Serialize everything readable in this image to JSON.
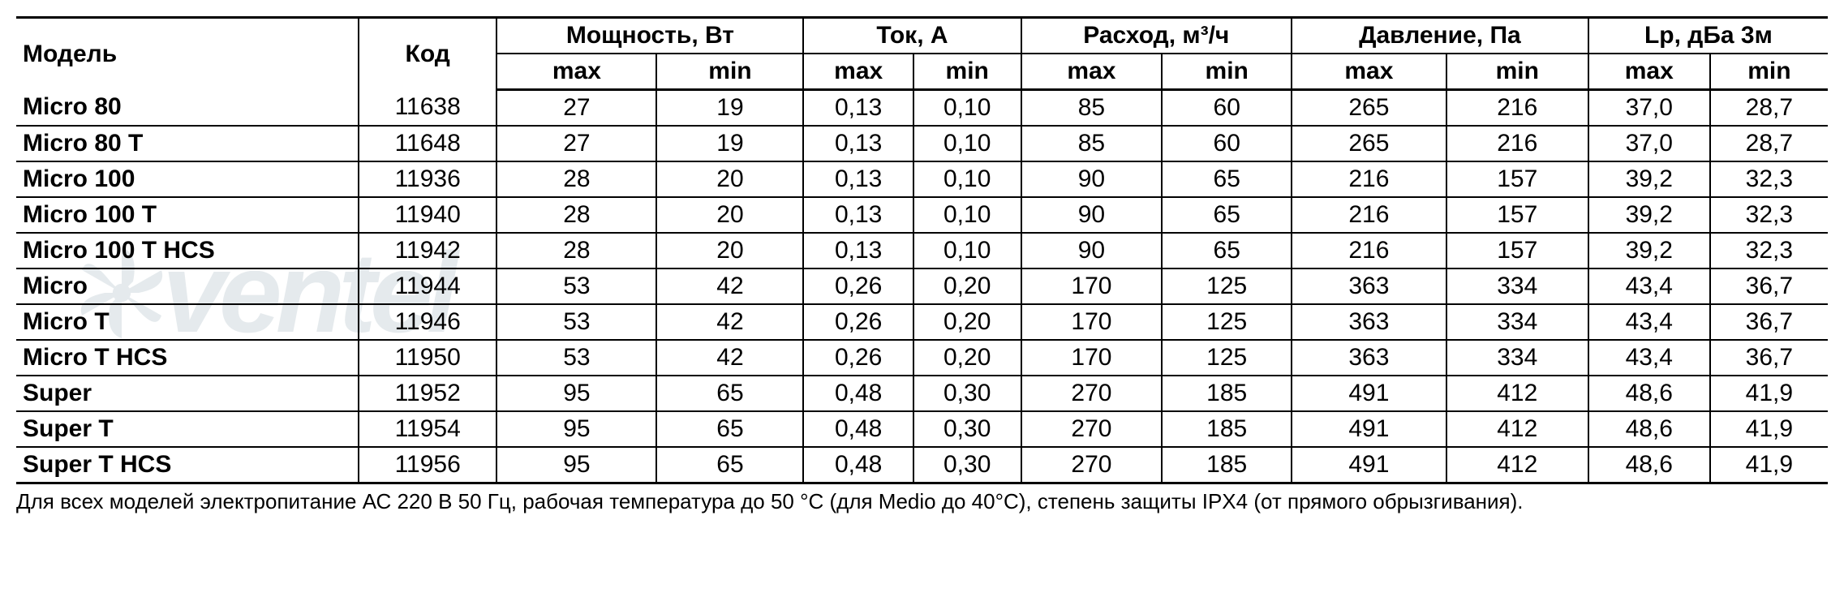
{
  "table": {
    "headers": {
      "model": "Модель",
      "code": "Код",
      "groups": [
        {
          "label": "Мощность, Вт",
          "sub": [
            "max",
            "min"
          ]
        },
        {
          "label": "Ток, А",
          "sub": [
            "max",
            "min"
          ]
        },
        {
          "label": "Расход, м³/ч",
          "sub": [
            "max",
            "min"
          ]
        },
        {
          "label": "Давление, Па",
          "sub": [
            "max",
            "min"
          ]
        },
        {
          "label": "Lp, дБа 3м",
          "sub": [
            "max",
            "min"
          ]
        }
      ]
    },
    "rows": [
      {
        "model": "Micro 80",
        "code": "11638",
        "vals": [
          "27",
          "19",
          "0,13",
          "0,10",
          "85",
          "60",
          "265",
          "216",
          "37,0",
          "28,7"
        ]
      },
      {
        "model": "Micro 80 T",
        "code": "11648",
        "vals": [
          "27",
          "19",
          "0,13",
          "0,10",
          "85",
          "60",
          "265",
          "216",
          "37,0",
          "28,7"
        ]
      },
      {
        "model": "Micro 100",
        "code": "11936",
        "vals": [
          "28",
          "20",
          "0,13",
          "0,10",
          "90",
          "65",
          "216",
          "157",
          "39,2",
          "32,3"
        ]
      },
      {
        "model": "Micro 100 T",
        "code": "11940",
        "vals": [
          "28",
          "20",
          "0,13",
          "0,10",
          "90",
          "65",
          "216",
          "157",
          "39,2",
          "32,3"
        ]
      },
      {
        "model": "Micro 100 T HCS",
        "code": "11942",
        "vals": [
          "28",
          "20",
          "0,13",
          "0,10",
          "90",
          "65",
          "216",
          "157",
          "39,2",
          "32,3"
        ]
      },
      {
        "model": "Micro",
        "code": "11944",
        "vals": [
          "53",
          "42",
          "0,26",
          "0,20",
          "170",
          "125",
          "363",
          "334",
          "43,4",
          "36,7"
        ]
      },
      {
        "model": "Micro T",
        "code": "11946",
        "vals": [
          "53",
          "42",
          "0,26",
          "0,20",
          "170",
          "125",
          "363",
          "334",
          "43,4",
          "36,7"
        ]
      },
      {
        "model": "Micro T HCS",
        "code": "11950",
        "vals": [
          "53",
          "42",
          "0,26",
          "0,20",
          "170",
          "125",
          "363",
          "334",
          "43,4",
          "36,7"
        ]
      },
      {
        "model": "Super",
        "code": "11952",
        "vals": [
          "95",
          "65",
          "0,48",
          "0,30",
          "270",
          "185",
          "491",
          "412",
          "48,6",
          "41,9"
        ]
      },
      {
        "model": "Super T",
        "code": "11954",
        "vals": [
          "95",
          "65",
          "0,48",
          "0,30",
          "270",
          "185",
          "491",
          "412",
          "48,6",
          "41,9"
        ]
      },
      {
        "model": "Super T HCS",
        "code": "11956",
        "vals": [
          "95",
          "65",
          "0,48",
          "0,30",
          "270",
          "185",
          "491",
          "412",
          "48,6",
          "41,9"
        ]
      }
    ],
    "footnote": "Для всех моделей электропитание АС 220 В 50 Гц, рабочая температура до 50 °С (для Medio до 40°С), степень защиты IPX4 (от прямого обрызгивания).",
    "watermark_text": "ventel",
    "colors": {
      "border": "#000000",
      "text": "#000000",
      "background": "#ffffff",
      "watermark": "#5a7a8a"
    },
    "font_sizes": {
      "header": 30,
      "body": 30,
      "footnote": 26
    }
  }
}
